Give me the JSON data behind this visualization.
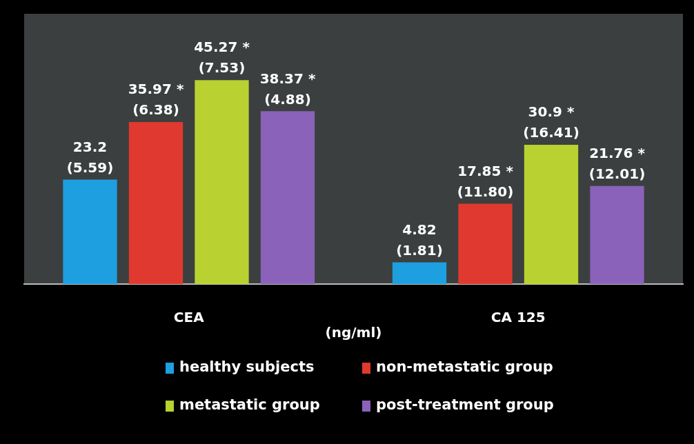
{
  "chart_data": {
    "type": "bar",
    "xlabel": "(ng/ml)",
    "categories": [
      "CEA",
      "CA 125"
    ],
    "series": [
      {
        "name": "healthy subjects",
        "color": "#1e9fe0",
        "values": [
          23.2,
          4.82
        ],
        "value_labels": [
          "23.2\n(5.59)",
          "4.82\n(1.81)"
        ]
      },
      {
        "name": "non-metastatic group",
        "color": "#e0392f",
        "values": [
          35.97,
          17.85
        ],
        "value_labels": [
          "35.97 *\n(6.38)",
          "17.85 *\n(11.80)"
        ]
      },
      {
        "name": "metastatic group",
        "color": "#b9d131",
        "values": [
          45.27,
          30.9
        ],
        "value_labels": [
          "45.27 *\n(7.53)",
          "30.9 *\n(16.41)"
        ]
      },
      {
        "name": "post-treatment group",
        "color": "#8b62b9",
        "values": [
          38.37,
          21.76
        ],
        "value_labels": [
          "38.37 *\n(4.88)",
          "21.76 *\n(12.01)"
        ]
      }
    ],
    "grid": false,
    "legend": "bottom"
  }
}
